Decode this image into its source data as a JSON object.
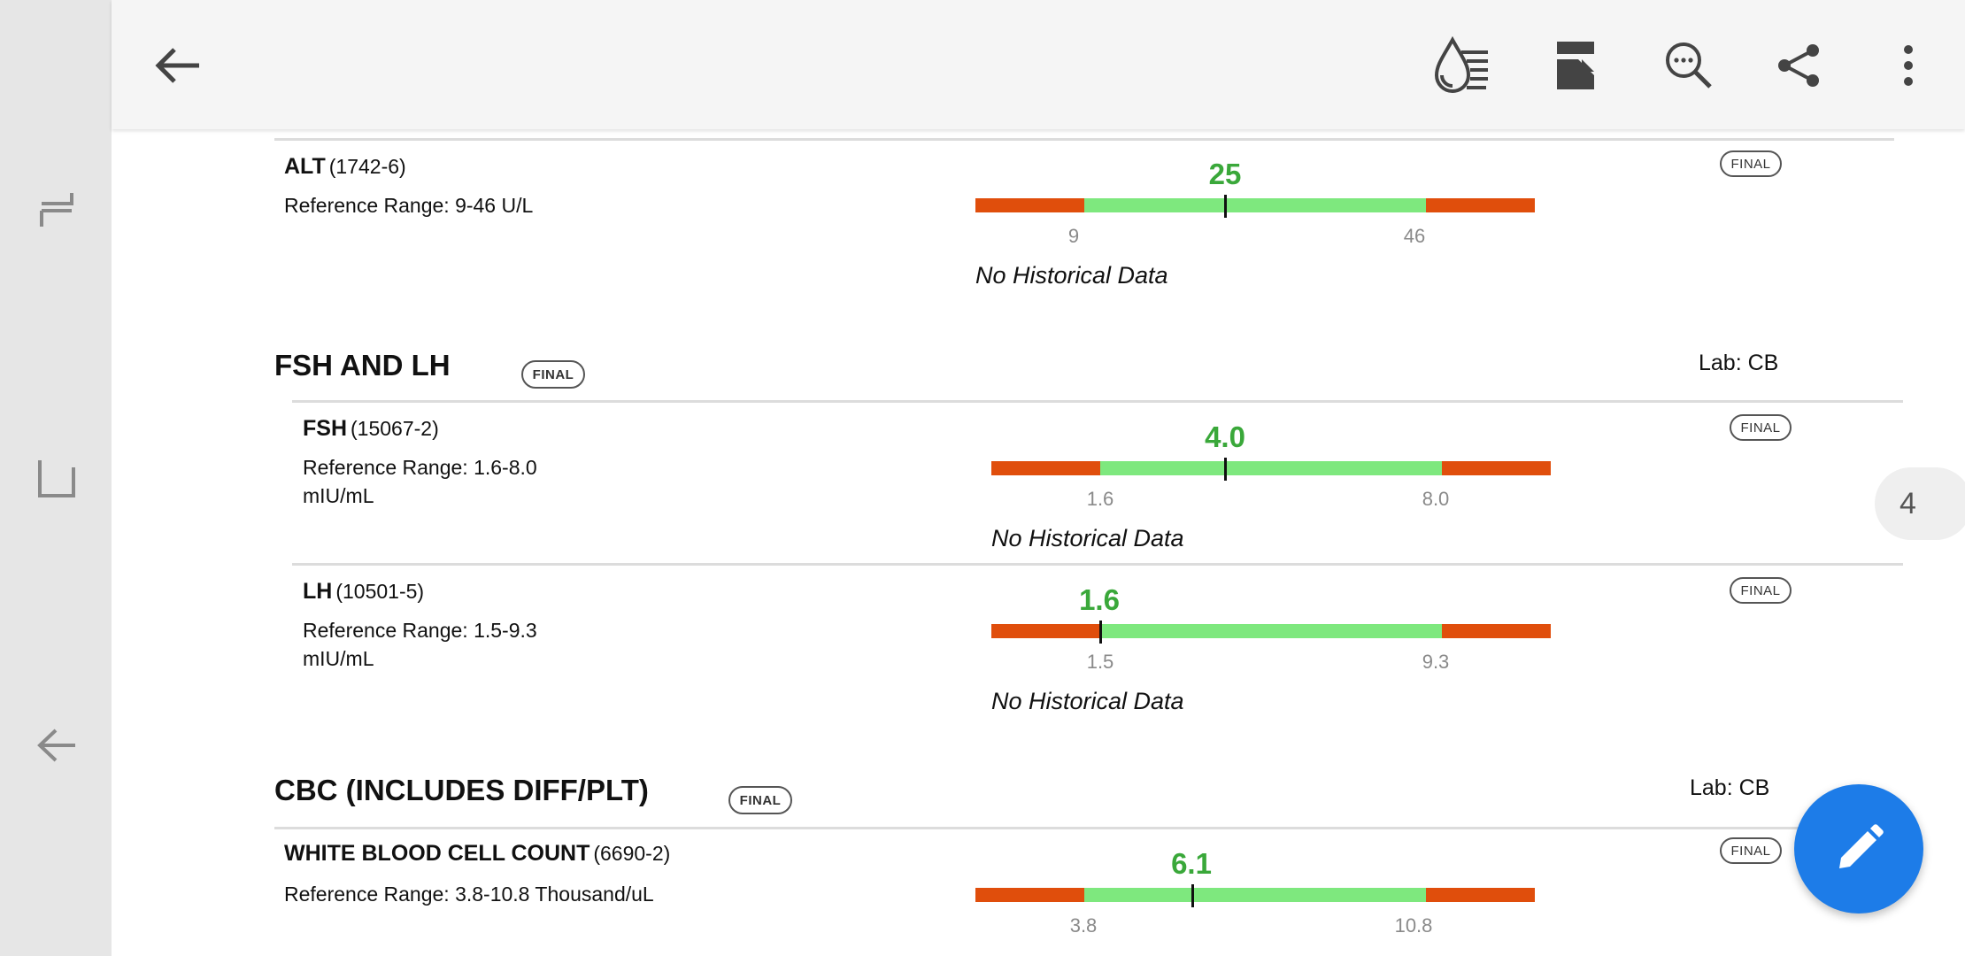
{
  "appbar": {
    "icons": [
      "back-arrow-icon",
      "lab-results-icon",
      "report-icon",
      "search-icon",
      "share-icon",
      "more-vert-icon"
    ]
  },
  "rail": {
    "icons": [
      "recent-apps-icon",
      "home-icon",
      "back-icon"
    ]
  },
  "status_final": "FINAL",
  "top_test": {
    "name": "ALT",
    "code": "(1742-6)",
    "reference": "Reference Range: 9-46 U/L",
    "value": "25",
    "low": "9",
    "high": "46",
    "history": "No Historical Data"
  },
  "sections": [
    {
      "title": "FSH AND LH",
      "lab": "Lab: CB",
      "tests": [
        {
          "name": "FSH",
          "code": "(15067-2)",
          "reference_line1": "Reference Range: 1.6-8.0",
          "reference_line2": "mIU/mL",
          "value": "4.0",
          "low": "1.6",
          "high": "8.0",
          "history": "No Historical Data"
        },
        {
          "name": "LH",
          "code": "(10501-5)",
          "reference_line1": "Reference Range: 1.5-9.3",
          "reference_line2": "mIU/mL",
          "value": "1.6",
          "low": "1.5",
          "high": "9.3",
          "history": "No Historical Data"
        }
      ]
    },
    {
      "title": "CBC (INCLUDES DIFF/PLT)",
      "lab": "Lab: CB",
      "tests": [
        {
          "name": "WHITE BLOOD CELL COUNT",
          "code": "(6690-2)",
          "reference": "Reference Range: 3.8-10.8 Thousand/uL",
          "value": "6.1",
          "low": "3.8",
          "high": "10.8"
        }
      ]
    }
  ],
  "page_indicator": "4",
  "fab_icon": "edit-pencil-icon",
  "colors": {
    "out_of_range": "#e04e0c",
    "in_range": "#7ee87e",
    "value_text": "#3aa83a",
    "fab": "#1d7ce8"
  }
}
